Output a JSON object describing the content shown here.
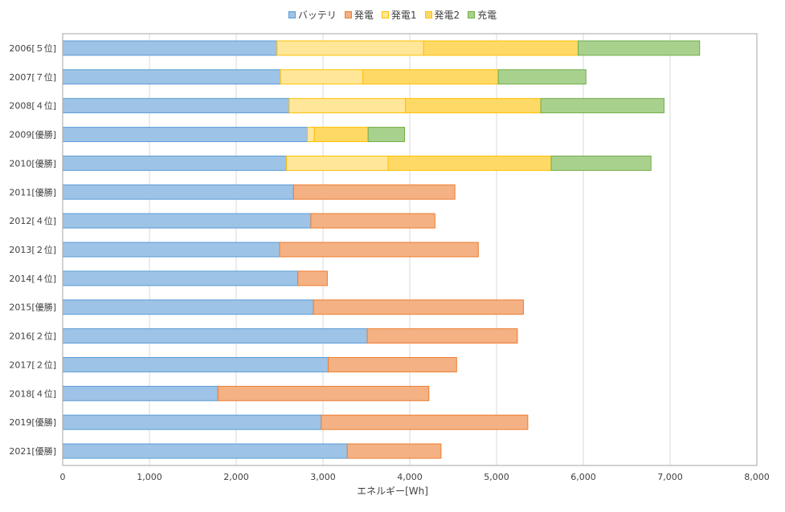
{
  "chart_data": {
    "type": "bar",
    "orientation": "horizontal",
    "stacked": true,
    "categories": [
      "2006[５位]",
      "2007[７位]",
      "2008[４位]",
      "2009[優勝]",
      "2010[優勝]",
      "2011[優勝]",
      "2012[４位]",
      "2013[２位]",
      "2014[４位]",
      "2015[優勝]",
      "2016[２位]",
      "2017[２位]",
      "2018[４位]",
      "2019[優勝]",
      "2021[優勝]"
    ],
    "series": [
      {
        "name": "バッテリ",
        "color": "#9dc3e6",
        "stroke": "#5b9bd5",
        "values": [
          2470,
          2510,
          2610,
          2820,
          2580,
          2660,
          2860,
          2500,
          2710,
          2890,
          3510,
          3060,
          1790,
          2980,
          3280
        ]
      },
      {
        "name": "発電",
        "color": "#f4b183",
        "stroke": "#ed7d31",
        "values": [
          0,
          0,
          0,
          0,
          0,
          1860,
          1430,
          2290,
          340,
          2420,
          1730,
          1480,
          2430,
          2380,
          1080
        ]
      },
      {
        "name": "発電1",
        "color": "#ffe699",
        "stroke": "#ffc000",
        "values": [
          1690,
          950,
          1340,
          80,
          1170,
          0,
          0,
          0,
          0,
          0,
          0,
          0,
          0,
          0,
          0
        ]
      },
      {
        "name": "発電2",
        "color": "#ffd966",
        "stroke": "#ffc000",
        "values": [
          1780,
          1560,
          1560,
          620,
          1880,
          0,
          0,
          0,
          0,
          0,
          0,
          0,
          0,
          0,
          0
        ]
      },
      {
        "name": "充電",
        "color": "#a9d18e",
        "stroke": "#70ad47",
        "values": [
          1400,
          1010,
          1420,
          420,
          1150,
          0,
          0,
          0,
          0,
          0,
          0,
          0,
          0,
          0,
          0
        ]
      }
    ],
    "xlim": [
      0,
      8000
    ],
    "xticks": [
      "0",
      "1,000",
      "2,000",
      "3,000",
      "4,000",
      "5,000",
      "6,000",
      "7,000",
      "8,000"
    ],
    "xlabel": "エネルギー[Wh]",
    "grid": "vertical",
    "legend_position": "top"
  }
}
